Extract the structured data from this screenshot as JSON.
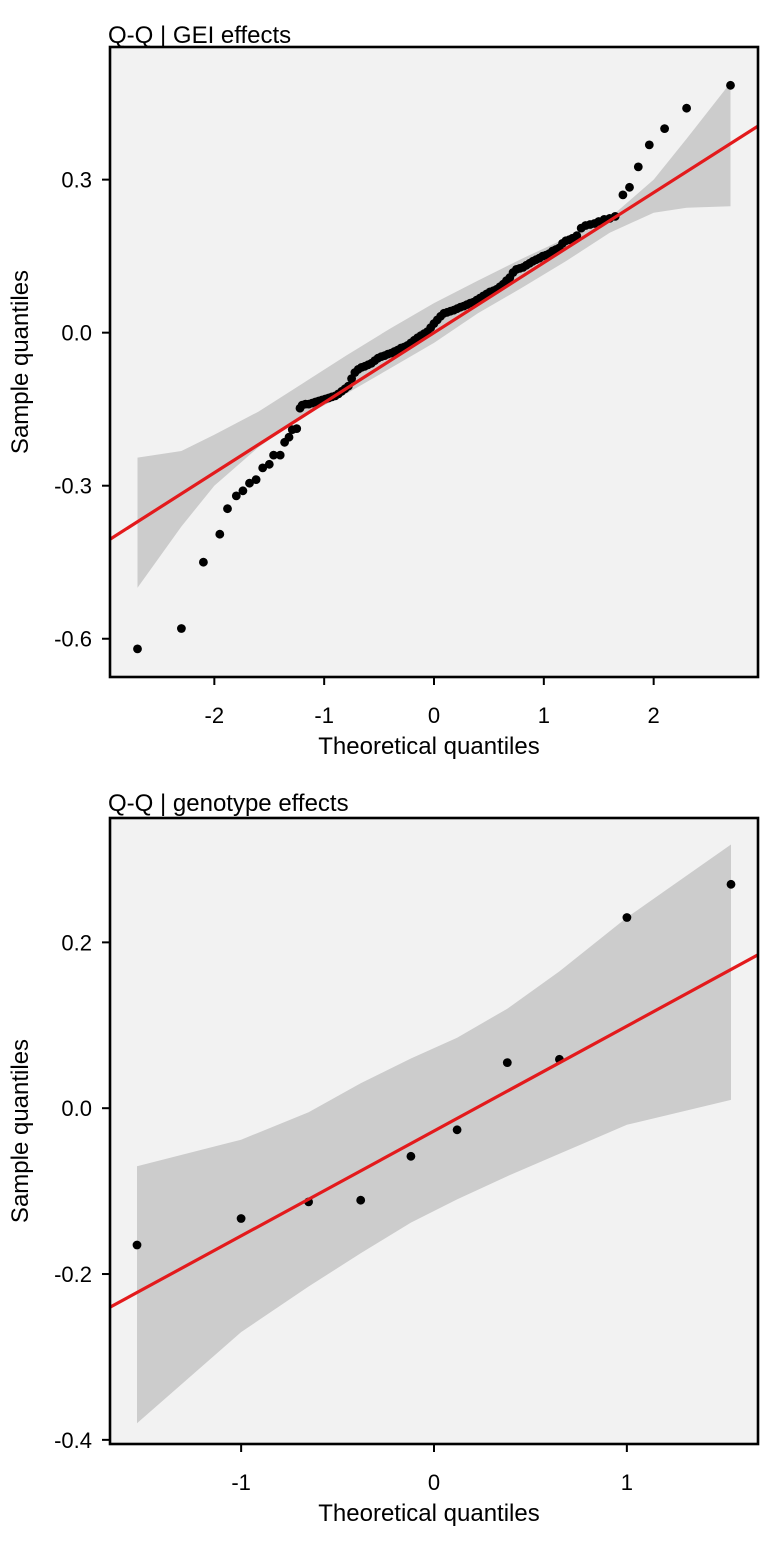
{
  "chart_data": [
    {
      "type": "scatter",
      "title": "Q-Q | GEI effects",
      "xlabel": "Theoretical quantiles",
      "ylabel": "Sample quantiles",
      "xlim": [
        -2.95,
        2.95
      ],
      "ylim": [
        -0.675,
        0.56
      ],
      "x_ticks": [
        -2,
        -1,
        0,
        1,
        2
      ],
      "x_tick_labels": [
        "-2",
        "-1",
        "0",
        "1",
        "2"
      ],
      "y_ticks": [
        0.3,
        0.0,
        -0.3,
        -0.6
      ],
      "y_tick_labels": [
        "0.3",
        "0.0",
        "-0.3",
        "-0.6"
      ],
      "grid": false,
      "colors": {
        "panel": "#F2F2F2",
        "band": "#CCCCCC",
        "line": "#E31A1C",
        "points": "#000000"
      },
      "reference_line": {
        "x": [
          -2.95,
          2.95
        ],
        "y": [
          -0.405,
          0.405
        ]
      },
      "confidence_band": {
        "x": [
          -2.7,
          -2.3,
          -2.0,
          -1.6,
          -1.2,
          -0.8,
          -0.4,
          0.0,
          0.4,
          0.8,
          1.2,
          1.6,
          2.0,
          2.3,
          2.7
        ],
        "upper": [
          -0.245,
          -0.232,
          -0.2,
          -0.155,
          -0.1,
          -0.045,
          0.008,
          0.058,
          0.102,
          0.145,
          0.185,
          0.225,
          0.3,
          0.38,
          0.49
        ],
        "lower": [
          -0.5,
          -0.38,
          -0.3,
          -0.225,
          -0.165,
          -0.12,
          -0.07,
          -0.02,
          0.038,
          0.088,
          0.14,
          0.196,
          0.235,
          0.245,
          0.248
        ]
      },
      "series": [
        {
          "x": [
            -2.7,
            -2.3,
            -2.1,
            -1.95,
            -1.88,
            -1.8,
            -1.74,
            -1.68,
            -1.62,
            -1.56,
            -1.5,
            -1.46,
            -1.4,
            -1.36,
            -1.32,
            -1.29,
            -1.25,
            -1.22,
            -1.2,
            -1.17,
            -1.14,
            -1.11,
            -1.08,
            -1.05,
            -1.02,
            -0.99,
            -0.96,
            -0.93,
            -0.9,
            -0.87,
            -0.84,
            -0.81,
            -0.78,
            -0.75,
            -0.72,
            -0.69,
            -0.66,
            -0.63,
            -0.6,
            -0.57,
            -0.54,
            -0.51,
            -0.48,
            -0.45,
            -0.42,
            -0.39,
            -0.36,
            -0.33,
            -0.3,
            -0.27,
            -0.24,
            -0.21,
            -0.18,
            -0.15,
            -0.12,
            -0.09,
            -0.06,
            -0.03,
            0.0,
            0.03,
            0.06,
            0.09,
            0.12,
            0.15,
            0.18,
            0.21,
            0.24,
            0.27,
            0.3,
            0.33,
            0.36,
            0.39,
            0.42,
            0.45,
            0.48,
            0.51,
            0.54,
            0.57,
            0.6,
            0.63,
            0.66,
            0.69,
            0.72,
            0.75,
            0.78,
            0.81,
            0.84,
            0.87,
            0.9,
            0.93,
            0.96,
            0.99,
            1.02,
            1.05,
            1.08,
            1.11,
            1.14,
            1.17,
            1.2,
            1.23,
            1.26,
            1.3,
            1.34,
            1.38,
            1.42,
            1.46,
            1.5,
            1.55,
            1.6,
            1.65,
            1.72,
            1.78,
            1.86,
            1.96,
            2.1,
            2.3,
            2.7
          ],
          "y": [
            -0.62,
            -0.58,
            -0.45,
            -0.395,
            -0.345,
            -0.32,
            -0.31,
            -0.295,
            -0.288,
            -0.265,
            -0.258,
            -0.24,
            -0.24,
            -0.215,
            -0.205,
            -0.19,
            -0.188,
            -0.148,
            -0.142,
            -0.14,
            -0.14,
            -0.138,
            -0.136,
            -0.134,
            -0.132,
            -0.13,
            -0.128,
            -0.126,
            -0.124,
            -0.12,
            -0.115,
            -0.11,
            -0.105,
            -0.09,
            -0.078,
            -0.072,
            -0.068,
            -0.066,
            -0.063,
            -0.06,
            -0.055,
            -0.05,
            -0.047,
            -0.045,
            -0.042,
            -0.04,
            -0.037,
            -0.034,
            -0.03,
            -0.028,
            -0.025,
            -0.02,
            -0.015,
            -0.01,
            -0.006,
            -0.002,
            0.002,
            0.01,
            0.018,
            0.025,
            0.032,
            0.038,
            0.04,
            0.042,
            0.044,
            0.047,
            0.05,
            0.052,
            0.055,
            0.058,
            0.06,
            0.064,
            0.068,
            0.072,
            0.076,
            0.08,
            0.082,
            0.085,
            0.09,
            0.095,
            0.102,
            0.108,
            0.118,
            0.124,
            0.126,
            0.128,
            0.132,
            0.136,
            0.14,
            0.143,
            0.146,
            0.15,
            0.152,
            0.155,
            0.16,
            0.163,
            0.166,
            0.175,
            0.18,
            0.182,
            0.185,
            0.19,
            0.205,
            0.21,
            0.212,
            0.214,
            0.218,
            0.222,
            0.224,
            0.228,
            0.27,
            0.285,
            0.325,
            0.368,
            0.4,
            0.44,
            0.485
          ]
        }
      ]
    },
    {
      "type": "scatter",
      "title": "Q-Q | genotype effects",
      "xlabel": "Theoretical quantiles",
      "ylabel": "Sample quantiles",
      "xlim": [
        -1.68,
        1.68
      ],
      "ylim": [
        -0.405,
        0.35
      ],
      "x_ticks": [
        -1,
        0,
        1
      ],
      "x_tick_labels": [
        "-1",
        "0",
        "1"
      ],
      "y_ticks": [
        0.2,
        0.0,
        -0.2,
        -0.4
      ],
      "y_tick_labels": [
        "0.2",
        "0.0",
        "-0.2",
        "-0.4"
      ],
      "grid": false,
      "colors": {
        "panel": "#F2F2F2",
        "band": "#CCCCCC",
        "line": "#E31A1C",
        "points": "#000000"
      },
      "reference_line": {
        "x": [
          -1.68,
          1.68
        ],
        "y": [
          -0.24,
          0.185
        ]
      },
      "confidence_band": {
        "x": [
          -1.54,
          -1.0,
          -0.65,
          -0.38,
          -0.12,
          0.12,
          0.38,
          0.65,
          1.0,
          1.54
        ],
        "upper": [
          -0.07,
          -0.038,
          -0.005,
          0.03,
          0.06,
          0.085,
          0.12,
          0.165,
          0.23,
          0.318
        ],
        "lower": [
          -0.38,
          -0.27,
          -0.215,
          -0.175,
          -0.138,
          -0.11,
          -0.082,
          -0.055,
          -0.02,
          0.01
        ]
      },
      "series": [
        {
          "x": [
            -1.54,
            -1.0,
            -0.65,
            -0.38,
            -0.12,
            0.12,
            0.38,
            0.65,
            1.0,
            1.54
          ],
          "y": [
            -0.165,
            -0.133,
            -0.113,
            -0.111,
            -0.058,
            -0.026,
            0.055,
            0.059,
            0.23,
            0.27
          ]
        }
      ]
    }
  ]
}
